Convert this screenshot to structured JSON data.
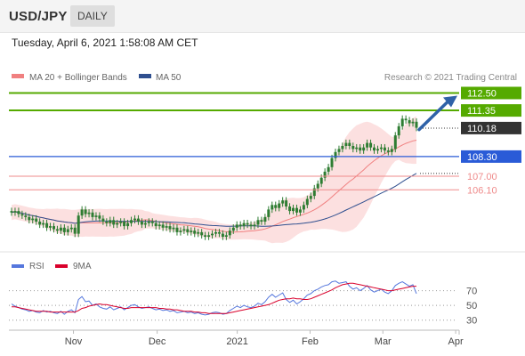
{
  "header": {
    "symbol": "USD/JPY",
    "period": "DAILY"
  },
  "datetime": "Tuesday, April 6, 2021 1:58:08 AM CET",
  "legend": {
    "ma20": "MA 20 + Bollinger Bands",
    "ma50": "MA 50",
    "copyright": "Research © 2021 Trading Central",
    "rsi": "RSI",
    "rsi_ma": "9MA"
  },
  "colors": {
    "ma20": "#f08080",
    "ma50": "#2f4f8f",
    "bands_fill": "#fbdada",
    "resistance": "#55aa00",
    "support_blue": "#2a5bd7",
    "support_red": "#ef8b8b",
    "candle": "#2e7d32",
    "arrow": "#2f62a8",
    "rsi": "#5577dd",
    "rsi_ma": "#d9002b",
    "current_price": "#333333"
  },
  "chart_data": [
    {
      "type": "candlestick",
      "title": "USD/JPY",
      "x_tick_labels": [
        "Nov",
        "Dec",
        "2021",
        "Feb",
        "Mar",
        "Apr"
      ],
      "ylim": [
        102.0,
        113.0
      ],
      "levels": [
        {
          "label": "112.50",
          "value": 112.5,
          "kind": "resistance"
        },
        {
          "label": "111.35",
          "value": 111.35,
          "kind": "resistance"
        },
        {
          "label": "110.18",
          "value": 110.18,
          "kind": "current"
        },
        {
          "label": "108.30",
          "value": 108.3,
          "kind": "support_pivot"
        },
        {
          "label": "107.00",
          "value": 107.0,
          "kind": "support"
        },
        {
          "label": "106.10",
          "value": 106.1,
          "kind": "support"
        }
      ],
      "closes": [
        104.6,
        104.7,
        104.5,
        104.4,
        104.3,
        104.1,
        104.2,
        104.0,
        103.8,
        103.9,
        103.6,
        103.7,
        103.5,
        103.4,
        103.6,
        103.3,
        103.5,
        103.6,
        103.2,
        104.4,
        104.8,
        104.5,
        104.6,
        104.3,
        104.4,
        104.2,
        104.0,
        103.9,
        104.1,
        103.8,
        103.9,
        104.0,
        103.7,
        103.9,
        104.1,
        104.2,
        104.0,
        103.8,
        103.9,
        104.0,
        103.9,
        103.7,
        103.8,
        103.6,
        103.7,
        103.5,
        103.6,
        103.3,
        103.4,
        103.5,
        103.3,
        103.4,
        103.2,
        103.3,
        103.1,
        103.0,
        103.1,
        103.2,
        103.3,
        103.2,
        103.0,
        103.1,
        103.4,
        103.6,
        103.8,
        103.7,
        103.9,
        103.8,
        103.7,
        103.8,
        104.1,
        104.0,
        104.3,
        104.8,
        105.1,
        104.9,
        105.2,
        105.4,
        105.0,
        104.7,
        104.9,
        104.6,
        104.8,
        105.1,
        105.5,
        105.7,
        106.2,
        106.5,
        106.9,
        107.3,
        107.6,
        108.2,
        108.6,
        108.8,
        109.0,
        109.2,
        109.0,
        108.8,
        108.9,
        108.7,
        108.9,
        109.2,
        108.9,
        108.7,
        108.8,
        108.9,
        108.7,
        108.6,
        108.8,
        109.7,
        110.3,
        110.8,
        110.7,
        110.5,
        110.6,
        110.2
      ]
    },
    {
      "type": "line",
      "title": "RSI",
      "series": [
        {
          "name": "RSI",
          "values": [
            52,
            49,
            47,
            45,
            44,
            42,
            43,
            41,
            40,
            43,
            41,
            42,
            40,
            39,
            42,
            38,
            42,
            44,
            40,
            58,
            62,
            55,
            56,
            50,
            52,
            48,
            46,
            45,
            48,
            44,
            46,
            48,
            44,
            47,
            50,
            51,
            48,
            46,
            47,
            48,
            46,
            44,
            45,
            43,
            44,
            42,
            43,
            40,
            41,
            42,
            40,
            41,
            39,
            40,
            38,
            37,
            38,
            40,
            41,
            40,
            38,
            39,
            43,
            46,
            49,
            47,
            50,
            48,
            47,
            49,
            53,
            51,
            55,
            61,
            65,
            61,
            64,
            67,
            58,
            54,
            57,
            52,
            55,
            59,
            64,
            66,
            70,
            72,
            75,
            77,
            78,
            82,
            83,
            80,
            81,
            82,
            76,
            72,
            74,
            70,
            73,
            77,
            71,
            68,
            70,
            72,
            68,
            66,
            70,
            77,
            80,
            82,
            79,
            76,
            78,
            66
          ]
        },
        {
          "name": "9MA",
          "values": [
            48,
            48,
            47,
            46,
            45,
            44,
            43,
            42,
            42,
            42,
            42,
            41,
            41,
            41,
            41,
            41,
            41,
            41,
            41,
            43,
            46,
            47,
            49,
            50,
            51,
            52,
            51,
            51,
            50,
            49,
            48,
            47,
            46,
            46,
            47,
            47,
            47,
            47,
            47,
            47,
            47,
            47,
            46,
            46,
            45,
            45,
            44,
            44,
            43,
            42,
            42,
            42,
            41,
            41,
            40,
            40,
            39,
            39,
            39,
            39,
            39,
            39,
            40,
            41,
            42,
            43,
            44,
            45,
            46,
            47,
            48,
            49,
            50,
            51,
            53,
            55,
            57,
            58,
            59,
            59,
            60,
            59,
            59,
            58,
            58,
            59,
            61,
            63,
            65,
            67,
            69,
            71,
            74,
            76,
            78,
            79,
            80,
            80,
            79,
            78,
            77,
            76,
            75,
            74,
            73,
            72,
            71,
            70,
            70,
            71,
            72,
            73,
            74,
            75,
            76,
            76
          ]
        }
      ],
      "y_tick_labels": [
        "70",
        "50",
        "30"
      ],
      "ylim": [
        20,
        90
      ]
    }
  ]
}
